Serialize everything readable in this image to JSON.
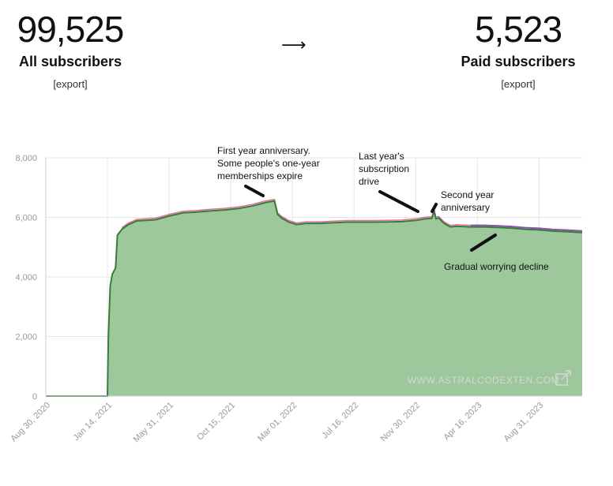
{
  "left_stat": {
    "value": "99,525",
    "label": "All subscribers",
    "export": "[export]"
  },
  "arrow": "⟶",
  "right_stat": {
    "value": "5,523",
    "label": "Paid subscribers",
    "export": "[export]"
  },
  "watermark": "WWW.ASTRALCODEXTEN.COM",
  "colors": {
    "fill": "#9dc89b",
    "line": "#3a7a3a",
    "top_purple": "#8d4fb0",
    "top_pink": "#e0709a",
    "grid": "#e6e6e6"
  },
  "chart_data": {
    "type": "area",
    "xlabel": "",
    "ylabel": "",
    "ylim": [
      0,
      8000
    ],
    "y_ticks": [
      "0",
      "2,000",
      "4,000",
      "6,000",
      "8,000"
    ],
    "x_ticks": [
      "Aug 30, 2020",
      "Jan 14, 2021",
      "May 31, 2021",
      "Oct 15, 2021",
      "Mar 01, 2022",
      "Jul 16, 2022",
      "Nov 30, 2022",
      "Apr 16, 2023",
      "Aug 31, 2023"
    ],
    "grid": true,
    "series": [
      {
        "x": [
          "2020-08-30",
          "2021-01-14",
          "2021-01-16",
          "2021-01-20",
          "2021-01-25",
          "2021-02-01",
          "2021-02-05",
          "2021-02-15",
          "2021-03-01",
          "2021-03-20",
          "2021-04-10",
          "2021-05-01",
          "2021-06-01",
          "2021-07-01",
          "2021-08-01",
          "2021-09-01",
          "2021-10-01",
          "2021-11-01",
          "2021-12-01",
          "2022-01-01",
          "2022-01-20",
          "2022-01-27",
          "2022-02-05",
          "2022-02-20",
          "2022-03-10",
          "2022-04-01",
          "2022-05-01",
          "2022-06-01",
          "2022-07-01",
          "2022-08-01",
          "2022-09-01",
          "2022-10-01",
          "2022-11-01",
          "2022-12-01",
          "2022-12-20",
          "2023-01-05",
          "2023-01-10",
          "2023-01-14",
          "2023-01-20",
          "2023-02-01",
          "2023-02-15",
          "2023-03-01",
          "2023-04-01",
          "2023-05-01",
          "2023-06-01",
          "2023-07-01",
          "2023-08-01",
          "2023-09-01",
          "2023-10-01",
          "2023-11-01",
          "2023-12-05"
        ],
        "values": [
          0,
          0,
          2000,
          3700,
          4100,
          4300,
          5400,
          5600,
          5750,
          5880,
          5900,
          5920,
          6050,
          6150,
          6180,
          6220,
          6250,
          6300,
          6380,
          6500,
          6550,
          6100,
          5980,
          5850,
          5760,
          5800,
          5800,
          5820,
          5840,
          5840,
          5840,
          5850,
          5860,
          5900,
          5950,
          5970,
          6200,
          5950,
          5980,
          5800,
          5680,
          5700,
          5680,
          5680,
          5660,
          5640,
          5600,
          5580,
          5540,
          5520,
          5490
        ]
      }
    ],
    "annotations": [
      {
        "lines": [
          "First year anniversary.",
          "Some people's one-year",
          "memberships expire"
        ]
      },
      {
        "lines": [
          "Last year's",
          "subscription",
          "drive"
        ]
      },
      {
        "lines": [
          "Second year",
          "anniversary"
        ]
      },
      {
        "lines": [
          "Gradual worrying decline"
        ]
      }
    ]
  }
}
